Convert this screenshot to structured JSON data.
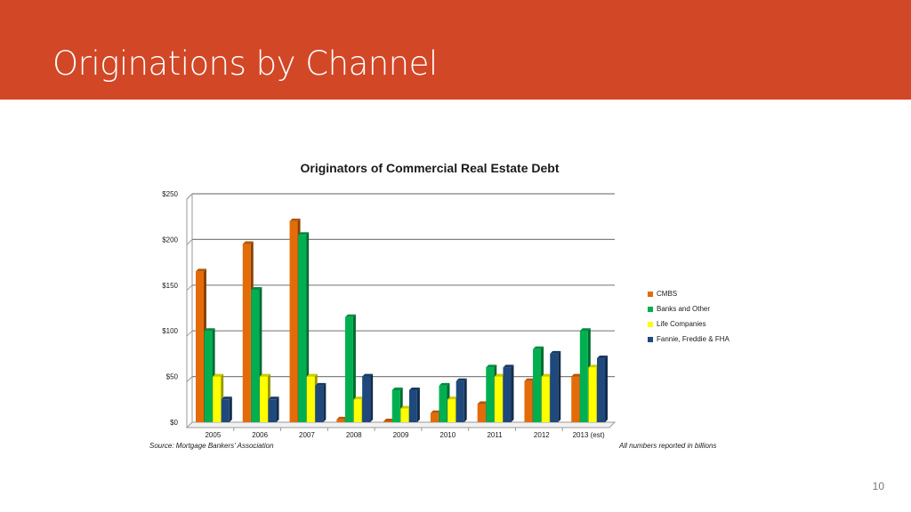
{
  "slide": {
    "title": "Originations by Channel",
    "page_number": "10",
    "header_color": "#d24726"
  },
  "chart_data": {
    "type": "bar",
    "title": "Originators of Commercial Real Estate Debt",
    "categories": [
      "2005",
      "2006",
      "2007",
      "2008",
      "2009",
      "2010",
      "2011",
      "2012",
      "2013 (est)"
    ],
    "series": [
      {
        "name": "CMBS",
        "color": "#e36c09",
        "values": [
          165,
          195,
          220,
          3,
          1,
          10,
          20,
          45,
          50
        ]
      },
      {
        "name": "Banks and Other",
        "color": "#00b050",
        "values": [
          100,
          145,
          205,
          115,
          35,
          40,
          60,
          80,
          100
        ]
      },
      {
        "name": "Life Companies",
        "color": "#ffff00",
        "values": [
          50,
          50,
          50,
          25,
          15,
          25,
          50,
          50,
          60
        ]
      },
      {
        "name": "Fannie, Freddie & FHA",
        "color": "#1f497d",
        "values": [
          25,
          25,
          40,
          50,
          35,
          45,
          60,
          75,
          70
        ]
      }
    ],
    "y_ticks": [
      "$0",
      "$50",
      "$100",
      "$150",
      "$200",
      "$250"
    ],
    "ylim": [
      0,
      250
    ],
    "grid": true,
    "legend_position": "right",
    "source": "Source: Mortgage Bankers' Association",
    "note": "All numbers reported in billions"
  }
}
